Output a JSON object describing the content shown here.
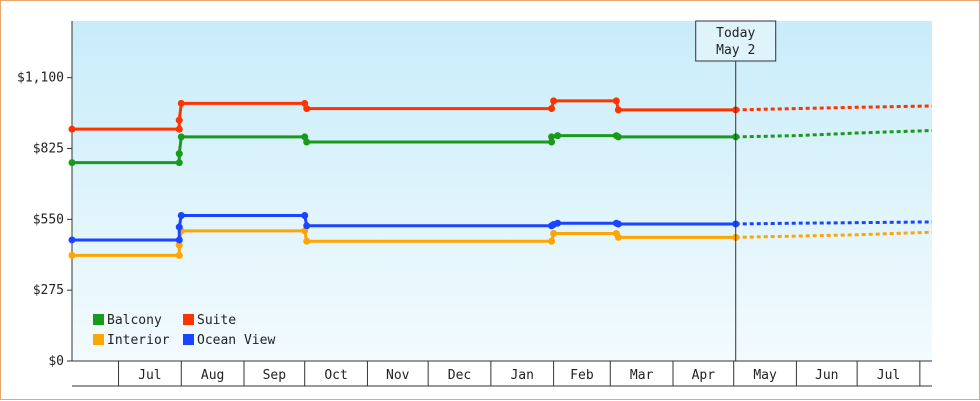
{
  "chart_data": {
    "type": "line",
    "y_ticks": [
      "$0",
      "$275",
      "$550",
      "$825",
      "$1,100"
    ],
    "ylim": [
      0,
      1320
    ],
    "months": [
      "Jul",
      "Aug",
      "Sep",
      "Oct",
      "Nov",
      "Dec",
      "Jan",
      "Feb",
      "Mar",
      "Apr",
      "May",
      "Jun",
      "Jul"
    ],
    "xlim": [
      "2016-06-08",
      "2017-08-07"
    ],
    "month_boundaries": [
      "2016-07-01",
      "2016-08-01",
      "2016-09-01",
      "2016-10-01",
      "2016-11-01",
      "2016-12-01",
      "2017-01-01",
      "2017-02-01",
      "2017-03-01",
      "2017-04-01",
      "2017-05-01",
      "2017-06-01",
      "2017-07-01",
      "2017-08-01"
    ],
    "today": {
      "line1": "Today",
      "line2": "May 2",
      "date": "2017-05-02"
    },
    "legend_placement": "bottom-left",
    "grid": false,
    "series": [
      {
        "name": "Balcony",
        "color": "#1a9a1a",
        "points": [
          [
            "2016-06-08",
            770
          ],
          [
            "2016-07-31",
            770
          ],
          [
            "2016-07-31",
            805
          ],
          [
            "2016-08-01",
            870
          ],
          [
            "2016-10-01",
            870
          ],
          [
            "2016-10-02",
            850
          ],
          [
            "2017-01-31",
            850
          ],
          [
            "2017-01-31",
            870
          ],
          [
            "2017-02-03",
            875
          ],
          [
            "2017-03-04",
            875
          ],
          [
            "2017-03-05",
            870
          ],
          [
            "2017-05-02",
            870
          ]
        ],
        "forecast": [
          [
            "2017-05-02",
            870
          ],
          [
            "2017-06-01",
            875
          ],
          [
            "2017-07-01",
            885
          ],
          [
            "2017-08-07",
            895
          ]
        ]
      },
      {
        "name": "Suite",
        "color": "#ff3300",
        "points": [
          [
            "2016-06-08",
            900
          ],
          [
            "2016-07-31",
            900
          ],
          [
            "2016-07-31",
            935
          ],
          [
            "2016-08-01",
            1000
          ],
          [
            "2016-10-01",
            1000
          ],
          [
            "2016-10-02",
            980
          ],
          [
            "2017-01-31",
            980
          ],
          [
            "2017-02-01",
            1010
          ],
          [
            "2017-03-04",
            1010
          ],
          [
            "2017-03-05",
            975
          ],
          [
            "2017-05-02",
            975
          ]
        ],
        "forecast": [
          [
            "2017-05-02",
            975
          ],
          [
            "2017-06-01",
            980
          ],
          [
            "2017-07-01",
            985
          ],
          [
            "2017-08-07",
            990
          ]
        ]
      },
      {
        "name": "Interior",
        "color": "#ffa500",
        "points": [
          [
            "2016-06-08",
            410
          ],
          [
            "2016-07-31",
            410
          ],
          [
            "2016-07-31",
            450
          ],
          [
            "2016-08-01",
            505
          ],
          [
            "2016-10-01",
            505
          ],
          [
            "2016-10-02",
            465
          ],
          [
            "2017-01-31",
            465
          ],
          [
            "2017-02-01",
            495
          ],
          [
            "2017-03-04",
            495
          ],
          [
            "2017-03-05",
            480
          ],
          [
            "2017-05-02",
            480
          ]
        ],
        "forecast": [
          [
            "2017-05-02",
            480
          ],
          [
            "2017-06-01",
            485
          ],
          [
            "2017-07-01",
            490
          ],
          [
            "2017-08-07",
            500
          ]
        ]
      },
      {
        "name": "Ocean View",
        "color": "#1a44ff",
        "points": [
          [
            "2016-06-08",
            470
          ],
          [
            "2016-07-31",
            470
          ],
          [
            "2016-07-31",
            520
          ],
          [
            "2016-08-01",
            565
          ],
          [
            "2016-10-01",
            565
          ],
          [
            "2016-10-02",
            525
          ],
          [
            "2017-01-31",
            525
          ],
          [
            "2017-02-01",
            530
          ],
          [
            "2017-02-03",
            535
          ],
          [
            "2017-03-04",
            535
          ],
          [
            "2017-03-05",
            532
          ],
          [
            "2017-05-02",
            532
          ]
        ],
        "forecast": [
          [
            "2017-05-02",
            532
          ],
          [
            "2017-06-01",
            535
          ],
          [
            "2017-07-01",
            537
          ],
          [
            "2017-08-07",
            540
          ]
        ]
      }
    ]
  }
}
